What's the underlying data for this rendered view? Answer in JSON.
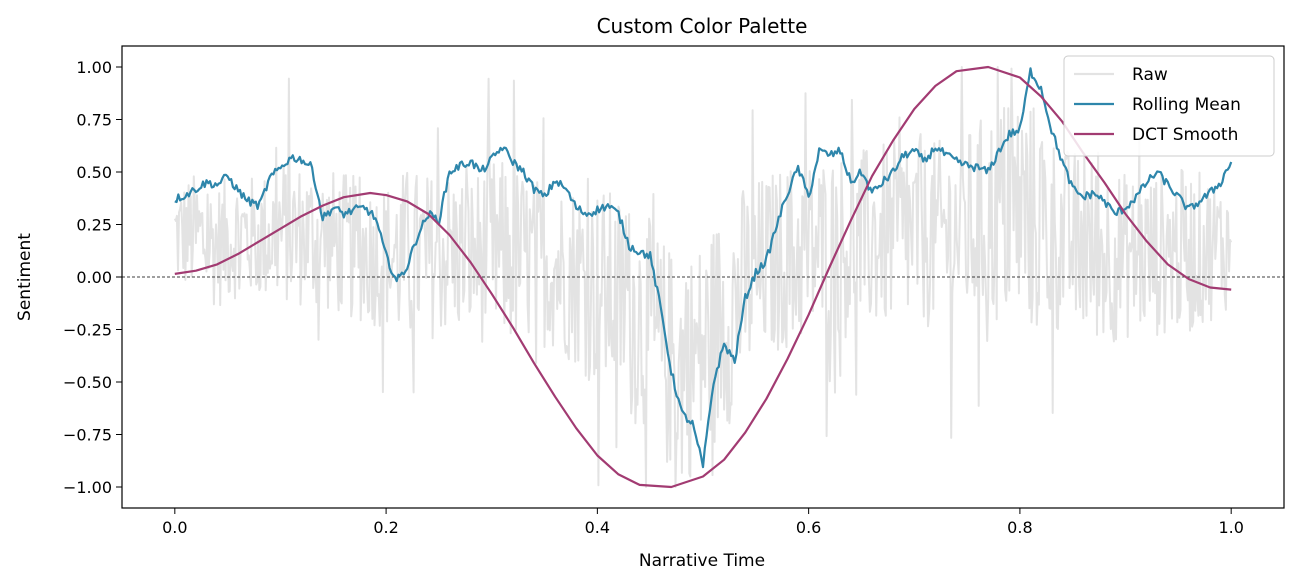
{
  "chart_data": {
    "type": "line",
    "title": "Custom Color Palette",
    "xlabel": "Narrative Time",
    "ylabel": "Sentiment",
    "xlim": [
      -0.05,
      1.05
    ],
    "ylim": [
      -1.1,
      1.1
    ],
    "x_ticks": [
      0.0,
      0.2,
      0.4,
      0.6,
      0.8,
      1.0
    ],
    "x_tick_labels": [
      "0.0",
      "0.2",
      "0.4",
      "0.6",
      "0.8",
      "1.0"
    ],
    "y_ticks": [
      1.0,
      0.75,
      0.5,
      0.25,
      0.0,
      -0.25,
      -0.5,
      -0.75,
      -1.0
    ],
    "y_tick_labels": [
      "1.00",
      "0.75",
      "0.50",
      "0.25",
      "0.00",
      "−0.25",
      "−0.50",
      "−0.75",
      "−1.00"
    ],
    "grid": false,
    "legend_position": "top-right",
    "reference_line": {
      "y": 0.0,
      "style": "dashed",
      "color": "#000000"
    },
    "series": [
      {
        "name": "Raw",
        "color": "#e3e3e3",
        "style": "noisy",
        "x": [
          0.0,
          0.02,
          0.04,
          0.06,
          0.08,
          0.1,
          0.12,
          0.14,
          0.16,
          0.18,
          0.2,
          0.22,
          0.24,
          0.26,
          0.28,
          0.3,
          0.32,
          0.34,
          0.36,
          0.38,
          0.4,
          0.42,
          0.44,
          0.46,
          0.48,
          0.5,
          0.52,
          0.54,
          0.56,
          0.58,
          0.6,
          0.62,
          0.64,
          0.66,
          0.68,
          0.7,
          0.72,
          0.74,
          0.76,
          0.78,
          0.8,
          0.82,
          0.84,
          0.86,
          0.88,
          0.9,
          0.92,
          0.94,
          0.96,
          0.98,
          1.0
        ],
        "values": [
          0.2,
          0.2,
          0.15,
          0.2,
          0.18,
          0.22,
          0.2,
          0.18,
          0.15,
          0.12,
          0.1,
          0.08,
          0.1,
          0.12,
          0.1,
          0.12,
          0.1,
          0.08,
          0.05,
          0.02,
          -0.05,
          -0.1,
          -0.2,
          -0.35,
          -0.45,
          -0.35,
          -0.2,
          -0.05,
          0.05,
          0.1,
          0.12,
          0.15,
          0.15,
          0.18,
          0.2,
          0.2,
          0.2,
          0.22,
          0.25,
          0.3,
          0.32,
          0.25,
          0.18,
          0.15,
          0.12,
          0.1,
          0.1,
          0.12,
          0.12,
          0.14,
          0.15
        ],
        "spread": [
          0.25,
          0.3,
          0.3,
          0.3,
          0.3,
          0.35,
          0.35,
          0.35,
          0.35,
          0.35,
          0.35,
          0.45,
          0.4,
          0.4,
          0.4,
          0.45,
          0.45,
          0.4,
          0.4,
          0.45,
          0.5,
          0.5,
          0.55,
          0.55,
          0.55,
          0.55,
          0.55,
          0.5,
          0.45,
          0.45,
          0.45,
          0.45,
          0.45,
          0.45,
          0.45,
          0.45,
          0.45,
          0.45,
          0.5,
          0.55,
          0.6,
          0.55,
          0.45,
          0.45,
          0.45,
          0.4,
          0.4,
          0.4,
          0.4,
          0.35,
          0.3
        ]
      },
      {
        "name": "Rolling Mean",
        "color": "#2e86ab",
        "style": "line",
        "x": [
          0.0,
          0.01,
          0.02,
          0.03,
          0.04,
          0.05,
          0.06,
          0.07,
          0.08,
          0.09,
          0.1,
          0.11,
          0.12,
          0.13,
          0.14,
          0.15,
          0.16,
          0.17,
          0.18,
          0.19,
          0.2,
          0.21,
          0.22,
          0.23,
          0.24,
          0.25,
          0.26,
          0.27,
          0.28,
          0.29,
          0.3,
          0.31,
          0.32,
          0.33,
          0.34,
          0.35,
          0.36,
          0.37,
          0.38,
          0.39,
          0.4,
          0.41,
          0.42,
          0.43,
          0.44,
          0.45,
          0.46,
          0.47,
          0.48,
          0.49,
          0.5,
          0.51,
          0.52,
          0.53,
          0.54,
          0.55,
          0.56,
          0.57,
          0.58,
          0.59,
          0.6,
          0.61,
          0.62,
          0.63,
          0.64,
          0.65,
          0.66,
          0.67,
          0.68,
          0.69,
          0.7,
          0.71,
          0.72,
          0.73,
          0.74,
          0.75,
          0.76,
          0.77,
          0.78,
          0.79,
          0.8,
          0.81,
          0.82,
          0.83,
          0.84,
          0.85,
          0.86,
          0.87,
          0.88,
          0.89,
          0.9,
          0.91,
          0.92,
          0.93,
          0.94,
          0.95,
          0.96,
          0.97,
          0.98,
          0.99,
          1.0
        ],
        "values": [
          0.37,
          0.39,
          0.42,
          0.45,
          0.44,
          0.48,
          0.41,
          0.36,
          0.34,
          0.47,
          0.52,
          0.57,
          0.56,
          0.52,
          0.28,
          0.33,
          0.3,
          0.32,
          0.33,
          0.28,
          0.1,
          -0.02,
          0.05,
          0.2,
          0.3,
          0.27,
          0.5,
          0.53,
          0.55,
          0.5,
          0.56,
          0.62,
          0.55,
          0.5,
          0.42,
          0.38,
          0.46,
          0.42,
          0.33,
          0.3,
          0.32,
          0.34,
          0.3,
          0.15,
          0.12,
          0.1,
          -0.15,
          -0.45,
          -0.65,
          -0.7,
          -0.9,
          -0.5,
          -0.32,
          -0.4,
          -0.1,
          0.02,
          0.08,
          0.25,
          0.4,
          0.52,
          0.38,
          0.6,
          0.58,
          0.6,
          0.45,
          0.5,
          0.4,
          0.45,
          0.5,
          0.58,
          0.6,
          0.55,
          0.62,
          0.58,
          0.55,
          0.53,
          0.52,
          0.5,
          0.6,
          0.68,
          0.7,
          0.98,
          0.9,
          0.7,
          0.55,
          0.42,
          0.38,
          0.4,
          0.36,
          0.3,
          0.33,
          0.38,
          0.45,
          0.5,
          0.44,
          0.38,
          0.32,
          0.36,
          0.4,
          0.45,
          0.55
        ]
      },
      {
        "name": "DCT Smooth",
        "color": "#a23b72",
        "style": "line",
        "x": [
          0.0,
          0.02,
          0.04,
          0.06,
          0.08,
          0.1,
          0.12,
          0.14,
          0.16,
          0.185,
          0.2,
          0.22,
          0.24,
          0.26,
          0.28,
          0.3,
          0.32,
          0.34,
          0.36,
          0.38,
          0.4,
          0.42,
          0.44,
          0.47,
          0.5,
          0.52,
          0.54,
          0.56,
          0.58,
          0.6,
          0.62,
          0.64,
          0.66,
          0.68,
          0.7,
          0.72,
          0.74,
          0.77,
          0.8,
          0.82,
          0.84,
          0.86,
          0.88,
          0.9,
          0.92,
          0.94,
          0.96,
          0.98,
          1.0
        ],
        "values": [
          0.015,
          0.03,
          0.06,
          0.11,
          0.17,
          0.23,
          0.29,
          0.34,
          0.38,
          0.4,
          0.39,
          0.36,
          0.3,
          0.2,
          0.07,
          -0.08,
          -0.24,
          -0.41,
          -0.57,
          -0.72,
          -0.85,
          -0.94,
          -0.99,
          -1.0,
          -0.95,
          -0.87,
          -0.74,
          -0.58,
          -0.39,
          -0.18,
          0.05,
          0.27,
          0.48,
          0.65,
          0.8,
          0.91,
          0.98,
          1.0,
          0.95,
          0.86,
          0.74,
          0.59,
          0.45,
          0.3,
          0.17,
          0.06,
          -0.01,
          -0.05,
          -0.06
        ]
      }
    ]
  }
}
